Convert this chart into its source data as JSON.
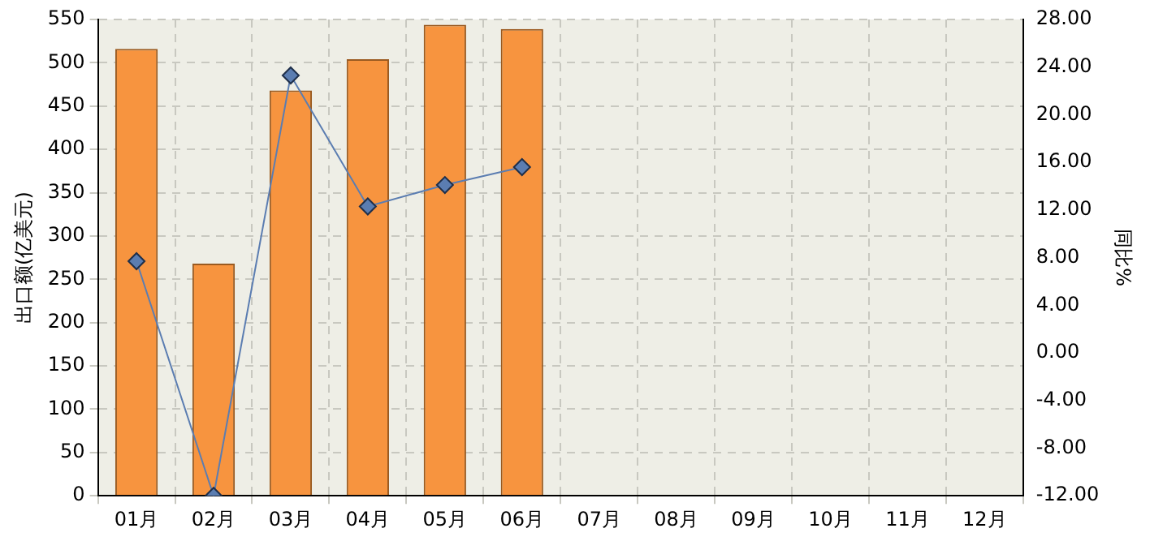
{
  "chart_data": {
    "type": "bar",
    "ylabel": "出口额(亿美元)",
    "y2label": "同比%",
    "categories": [
      "01月",
      "02月",
      "03月",
      "04月",
      "05月",
      "06月",
      "07月",
      "08月",
      "09月",
      "10月",
      "11月",
      "12月"
    ],
    "series": [
      {
        "color": "#f7943f",
        "values": [
          516,
          268,
          468,
          504,
          544,
          539,
          null,
          null,
          null,
          null,
          null,
          null
        ]
      },
      {
        "type": "line",
        "axis": "y2",
        "color": "#5b7db1",
        "marker": "diamond",
        "values": [
          7.7,
          -12.0,
          23.3,
          12.3,
          14.1,
          15.6,
          null,
          null,
          null,
          null,
          null,
          null
        ]
      }
    ],
    "ylim": [
      0,
      550
    ],
    "yticks": [
      0,
      50,
      100,
      150,
      200,
      250,
      300,
      350,
      400,
      450,
      500,
      550
    ],
    "y2lim": [
      -12,
      28
    ],
    "y2ticks": [
      {
        "value": -12,
        "label": "-12.00"
      },
      {
        "value": -8,
        "label": "-8.00"
      },
      {
        "value": -4,
        "label": "-4.00"
      },
      {
        "value": 0,
        "label": "0.00"
      },
      {
        "value": 4,
        "label": "4.00"
      },
      {
        "value": 8,
        "label": "8.00"
      },
      {
        "value": 12,
        "label": "12.00"
      },
      {
        "value": 16,
        "label": "16.00"
      },
      {
        "value": 20,
        "label": "20.00"
      },
      {
        "value": 24,
        "label": "24.00"
      },
      {
        "value": 28,
        "label": "28.00"
      }
    ],
    "grid": true,
    "legend": false
  }
}
